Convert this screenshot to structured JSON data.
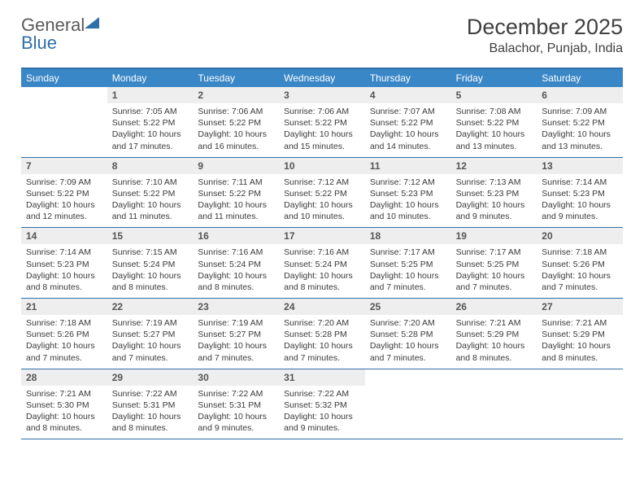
{
  "logo": {
    "part1": "General",
    "part2": "Blue"
  },
  "title": "December 2025",
  "location": "Balachor, Punjab, India",
  "colors": {
    "header_bg": "#3a87c7",
    "header_text": "#ffffff",
    "rule": "#2f6fa8",
    "daynum_bg": "#eeeeee",
    "body_text": "#3a3a3a",
    "title_text": "#404040"
  },
  "daynames": [
    "Sunday",
    "Monday",
    "Tuesday",
    "Wednesday",
    "Thursday",
    "Friday",
    "Saturday"
  ],
  "weeks": [
    [
      {
        "n": "",
        "sr": "",
        "ss": "",
        "dl": ""
      },
      {
        "n": "1",
        "sr": "Sunrise: 7:05 AM",
        "ss": "Sunset: 5:22 PM",
        "dl": "Daylight: 10 hours and 17 minutes."
      },
      {
        "n": "2",
        "sr": "Sunrise: 7:06 AM",
        "ss": "Sunset: 5:22 PM",
        "dl": "Daylight: 10 hours and 16 minutes."
      },
      {
        "n": "3",
        "sr": "Sunrise: 7:06 AM",
        "ss": "Sunset: 5:22 PM",
        "dl": "Daylight: 10 hours and 15 minutes."
      },
      {
        "n": "4",
        "sr": "Sunrise: 7:07 AM",
        "ss": "Sunset: 5:22 PM",
        "dl": "Daylight: 10 hours and 14 minutes."
      },
      {
        "n": "5",
        "sr": "Sunrise: 7:08 AM",
        "ss": "Sunset: 5:22 PM",
        "dl": "Daylight: 10 hours and 13 minutes."
      },
      {
        "n": "6",
        "sr": "Sunrise: 7:09 AM",
        "ss": "Sunset: 5:22 PM",
        "dl": "Daylight: 10 hours and 13 minutes."
      }
    ],
    [
      {
        "n": "7",
        "sr": "Sunrise: 7:09 AM",
        "ss": "Sunset: 5:22 PM",
        "dl": "Daylight: 10 hours and 12 minutes."
      },
      {
        "n": "8",
        "sr": "Sunrise: 7:10 AM",
        "ss": "Sunset: 5:22 PM",
        "dl": "Daylight: 10 hours and 11 minutes."
      },
      {
        "n": "9",
        "sr": "Sunrise: 7:11 AM",
        "ss": "Sunset: 5:22 PM",
        "dl": "Daylight: 10 hours and 11 minutes."
      },
      {
        "n": "10",
        "sr": "Sunrise: 7:12 AM",
        "ss": "Sunset: 5:22 PM",
        "dl": "Daylight: 10 hours and 10 minutes."
      },
      {
        "n": "11",
        "sr": "Sunrise: 7:12 AM",
        "ss": "Sunset: 5:23 PM",
        "dl": "Daylight: 10 hours and 10 minutes."
      },
      {
        "n": "12",
        "sr": "Sunrise: 7:13 AM",
        "ss": "Sunset: 5:23 PM",
        "dl": "Daylight: 10 hours and 9 minutes."
      },
      {
        "n": "13",
        "sr": "Sunrise: 7:14 AM",
        "ss": "Sunset: 5:23 PM",
        "dl": "Daylight: 10 hours and 9 minutes."
      }
    ],
    [
      {
        "n": "14",
        "sr": "Sunrise: 7:14 AM",
        "ss": "Sunset: 5:23 PM",
        "dl": "Daylight: 10 hours and 8 minutes."
      },
      {
        "n": "15",
        "sr": "Sunrise: 7:15 AM",
        "ss": "Sunset: 5:24 PM",
        "dl": "Daylight: 10 hours and 8 minutes."
      },
      {
        "n": "16",
        "sr": "Sunrise: 7:16 AM",
        "ss": "Sunset: 5:24 PM",
        "dl": "Daylight: 10 hours and 8 minutes."
      },
      {
        "n": "17",
        "sr": "Sunrise: 7:16 AM",
        "ss": "Sunset: 5:24 PM",
        "dl": "Daylight: 10 hours and 8 minutes."
      },
      {
        "n": "18",
        "sr": "Sunrise: 7:17 AM",
        "ss": "Sunset: 5:25 PM",
        "dl": "Daylight: 10 hours and 7 minutes."
      },
      {
        "n": "19",
        "sr": "Sunrise: 7:17 AM",
        "ss": "Sunset: 5:25 PM",
        "dl": "Daylight: 10 hours and 7 minutes."
      },
      {
        "n": "20",
        "sr": "Sunrise: 7:18 AM",
        "ss": "Sunset: 5:26 PM",
        "dl": "Daylight: 10 hours and 7 minutes."
      }
    ],
    [
      {
        "n": "21",
        "sr": "Sunrise: 7:18 AM",
        "ss": "Sunset: 5:26 PM",
        "dl": "Daylight: 10 hours and 7 minutes."
      },
      {
        "n": "22",
        "sr": "Sunrise: 7:19 AM",
        "ss": "Sunset: 5:27 PM",
        "dl": "Daylight: 10 hours and 7 minutes."
      },
      {
        "n": "23",
        "sr": "Sunrise: 7:19 AM",
        "ss": "Sunset: 5:27 PM",
        "dl": "Daylight: 10 hours and 7 minutes."
      },
      {
        "n": "24",
        "sr": "Sunrise: 7:20 AM",
        "ss": "Sunset: 5:28 PM",
        "dl": "Daylight: 10 hours and 7 minutes."
      },
      {
        "n": "25",
        "sr": "Sunrise: 7:20 AM",
        "ss": "Sunset: 5:28 PM",
        "dl": "Daylight: 10 hours and 7 minutes."
      },
      {
        "n": "26",
        "sr": "Sunrise: 7:21 AM",
        "ss": "Sunset: 5:29 PM",
        "dl": "Daylight: 10 hours and 8 minutes."
      },
      {
        "n": "27",
        "sr": "Sunrise: 7:21 AM",
        "ss": "Sunset: 5:29 PM",
        "dl": "Daylight: 10 hours and 8 minutes."
      }
    ],
    [
      {
        "n": "28",
        "sr": "Sunrise: 7:21 AM",
        "ss": "Sunset: 5:30 PM",
        "dl": "Daylight: 10 hours and 8 minutes."
      },
      {
        "n": "29",
        "sr": "Sunrise: 7:22 AM",
        "ss": "Sunset: 5:31 PM",
        "dl": "Daylight: 10 hours and 8 minutes."
      },
      {
        "n": "30",
        "sr": "Sunrise: 7:22 AM",
        "ss": "Sunset: 5:31 PM",
        "dl": "Daylight: 10 hours and 9 minutes."
      },
      {
        "n": "31",
        "sr": "Sunrise: 7:22 AM",
        "ss": "Sunset: 5:32 PM",
        "dl": "Daylight: 10 hours and 9 minutes."
      },
      {
        "n": "",
        "sr": "",
        "ss": "",
        "dl": ""
      },
      {
        "n": "",
        "sr": "",
        "ss": "",
        "dl": ""
      },
      {
        "n": "",
        "sr": "",
        "ss": "",
        "dl": ""
      }
    ]
  ]
}
